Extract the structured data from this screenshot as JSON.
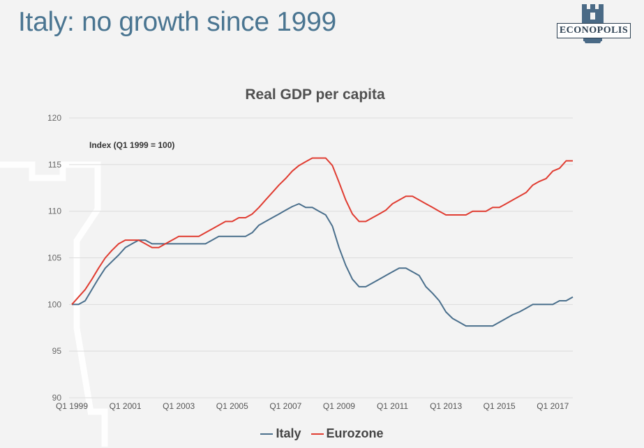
{
  "header": {
    "title": "Italy: no growth since 1999",
    "logo_text": "ECONOPOLIS"
  },
  "colors": {
    "title": "#4a7591",
    "italy": "#4a6f8c",
    "eurozone": "#e03c31",
    "grid": "#dcdcdc",
    "background": "#f3f3f3"
  },
  "chart_data": {
    "type": "line",
    "title": "Real GDP per capita",
    "annotation": "Index (Q1 1999 = 100)",
    "xlabel": "",
    "ylabel": "",
    "ylim": [
      90,
      120
    ],
    "yticks": [
      90,
      95,
      100,
      105,
      110,
      115,
      120
    ],
    "xlim": [
      1999.0,
      2017.75
    ],
    "xtick_labels": [
      "Q1 1999",
      "Q1 2001",
      "Q1 2003",
      "Q1 2005",
      "Q1 2007",
      "Q1 2009",
      "Q1 2011",
      "Q1 2013",
      "Q1 2015",
      "Q1 2017"
    ],
    "xtick_values": [
      1999,
      2001,
      2003,
      2005,
      2007,
      2009,
      2011,
      2013,
      2015,
      2017
    ],
    "grid": "horizontal",
    "legend_position": "bottom-center",
    "series": [
      {
        "name": "Italy",
        "color": "#4a6f8c",
        "x": [
          1999.0,
          1999.25,
          1999.5,
          1999.75,
          2000.0,
          2000.25,
          2000.5,
          2000.75,
          2001.0,
          2001.25,
          2001.5,
          2001.75,
          2002.0,
          2002.25,
          2002.5,
          2002.75,
          2003.0,
          2003.25,
          2003.5,
          2003.75,
          2004.0,
          2004.25,
          2004.5,
          2004.75,
          2005.0,
          2005.25,
          2005.5,
          2005.75,
          2006.0,
          2006.25,
          2006.5,
          2006.75,
          2007.0,
          2007.25,
          2007.5,
          2007.75,
          2008.0,
          2008.25,
          2008.5,
          2008.75,
          2009.0,
          2009.25,
          2009.5,
          2009.75,
          2010.0,
          2010.25,
          2010.5,
          2010.75,
          2011.0,
          2011.25,
          2011.5,
          2011.75,
          2012.0,
          2012.25,
          2012.5,
          2012.75,
          2013.0,
          2013.25,
          2013.5,
          2013.75,
          2014.0,
          2014.25,
          2014.5,
          2014.75,
          2015.0,
          2015.25,
          2015.5,
          2015.75,
          2016.0,
          2016.25,
          2016.5,
          2016.75,
          2017.0,
          2017.25,
          2017.5,
          2017.75
        ],
        "values": [
          100.0,
          100.0,
          100.4,
          101.6,
          102.8,
          103.9,
          104.6,
          105.3,
          106.1,
          106.5,
          106.9,
          106.9,
          106.5,
          106.5,
          106.5,
          106.5,
          106.5,
          106.5,
          106.5,
          106.5,
          106.5,
          106.9,
          107.3,
          107.3,
          107.3,
          107.3,
          107.3,
          107.7,
          108.5,
          108.9,
          109.3,
          109.7,
          110.1,
          110.5,
          110.8,
          110.4,
          110.4,
          110.0,
          109.6,
          108.4,
          106.1,
          104.2,
          102.7,
          101.9,
          101.9,
          102.3,
          102.7,
          103.1,
          103.5,
          103.9,
          103.9,
          103.5,
          103.1,
          101.9,
          101.2,
          100.4,
          99.2,
          98.5,
          98.1,
          97.7,
          97.7,
          97.7,
          97.7,
          97.7,
          98.1,
          98.5,
          98.9,
          99.2,
          99.6,
          100.0,
          100.0,
          100.0,
          100.0,
          100.4,
          100.4,
          100.8
        ]
      },
      {
        "name": "Eurozone",
        "color": "#e03c31",
        "x": [
          1999.0,
          1999.25,
          1999.5,
          1999.75,
          2000.0,
          2000.25,
          2000.5,
          2000.75,
          2001.0,
          2001.25,
          2001.5,
          2001.75,
          2002.0,
          2002.25,
          2002.5,
          2002.75,
          2003.0,
          2003.25,
          2003.5,
          2003.75,
          2004.0,
          2004.25,
          2004.5,
          2004.75,
          2005.0,
          2005.25,
          2005.5,
          2005.75,
          2006.0,
          2006.25,
          2006.5,
          2006.75,
          2007.0,
          2007.25,
          2007.5,
          2007.75,
          2008.0,
          2008.25,
          2008.5,
          2008.75,
          2009.0,
          2009.25,
          2009.5,
          2009.75,
          2010.0,
          2010.25,
          2010.5,
          2010.75,
          2011.0,
          2011.25,
          2011.5,
          2011.75,
          2012.0,
          2012.25,
          2012.5,
          2012.75,
          2013.0,
          2013.25,
          2013.5,
          2013.75,
          2014.0,
          2014.25,
          2014.5,
          2014.75,
          2015.0,
          2015.25,
          2015.5,
          2015.75,
          2016.0,
          2016.25,
          2016.5,
          2016.75,
          2017.0,
          2017.25,
          2017.5,
          2017.75
        ],
        "values": [
          100.0,
          100.8,
          101.6,
          102.7,
          103.9,
          105.0,
          105.8,
          106.5,
          106.9,
          106.9,
          106.9,
          106.5,
          106.1,
          106.1,
          106.5,
          106.9,
          107.3,
          107.3,
          107.3,
          107.3,
          107.7,
          108.1,
          108.5,
          108.9,
          108.9,
          109.3,
          109.3,
          109.7,
          110.4,
          111.2,
          112.0,
          112.8,
          113.5,
          114.3,
          114.9,
          115.3,
          115.7,
          115.7,
          115.7,
          114.9,
          113.1,
          111.2,
          109.7,
          108.9,
          108.9,
          109.3,
          109.7,
          110.1,
          110.8,
          111.2,
          111.6,
          111.6,
          111.2,
          110.8,
          110.4,
          110.0,
          109.6,
          109.6,
          109.6,
          109.6,
          110.0,
          110.0,
          110.0,
          110.4,
          110.4,
          110.8,
          111.2,
          111.6,
          112.0,
          112.8,
          113.2,
          113.5,
          114.3,
          114.6,
          115.4,
          115.4
        ]
      }
    ]
  }
}
